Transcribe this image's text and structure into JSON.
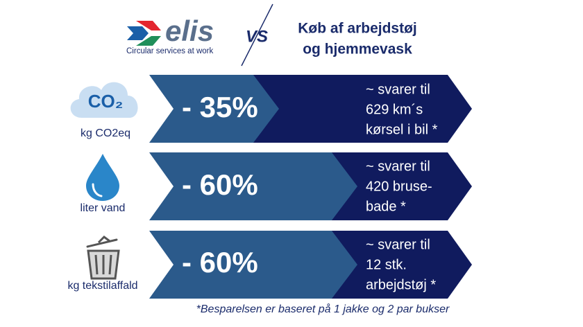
{
  "header": {
    "logo_text": "elis",
    "tagline": "Circular services at work",
    "vs": "VS",
    "title_lines": [
      "Køb af arbejdstøj",
      "og hjemmevask"
    ]
  },
  "rows": [
    {
      "icon_text": "CO₂",
      "label": "kg CO2eq",
      "saving": "- 35%",
      "comparison_lines": [
        "~ svarer til",
        "629 km´s",
        "kørsel i bil *"
      ]
    },
    {
      "label": "liter vand",
      "saving": "- 60%",
      "comparison_lines": [
        "~ svarer til",
        "420 bruse-",
        "bade *"
      ]
    },
    {
      "label": "kg tekstilaffald",
      "saving": "- 60%",
      "comparison_lines": [
        "~ svarer til",
        "12 stk.",
        "arbejdstøj *"
      ]
    }
  ],
  "footnote": "*Besparelsen er baseret på 1 jakke og 2 par bukser"
}
